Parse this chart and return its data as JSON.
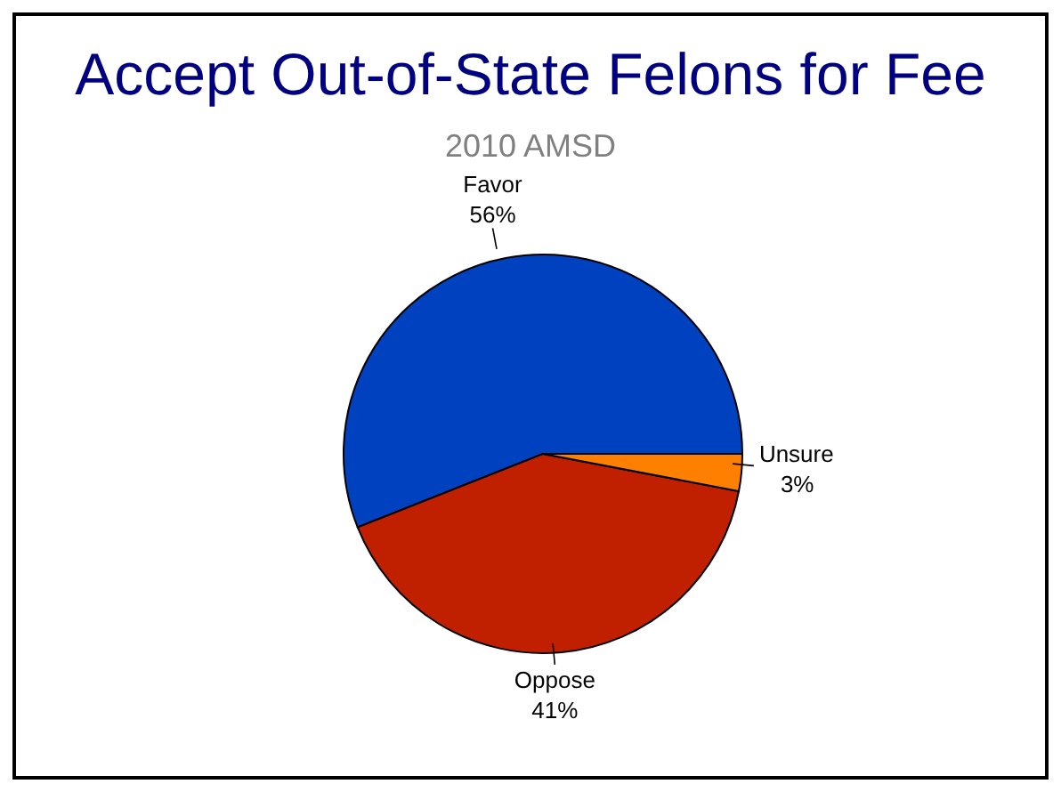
{
  "chart_data": {
    "type": "pie",
    "title": "Accept Out-of-State Felons for Fee",
    "subtitle": "2010 AMSD",
    "categories": [
      "Favor",
      "Oppose",
      "Unsure"
    ],
    "values": [
      56,
      41,
      3
    ],
    "colors": [
      "#0041c0",
      "#c02000",
      "#ff8000"
    ],
    "value_labels": [
      "56%",
      "41%",
      "3%"
    ],
    "legend": false
  }
}
